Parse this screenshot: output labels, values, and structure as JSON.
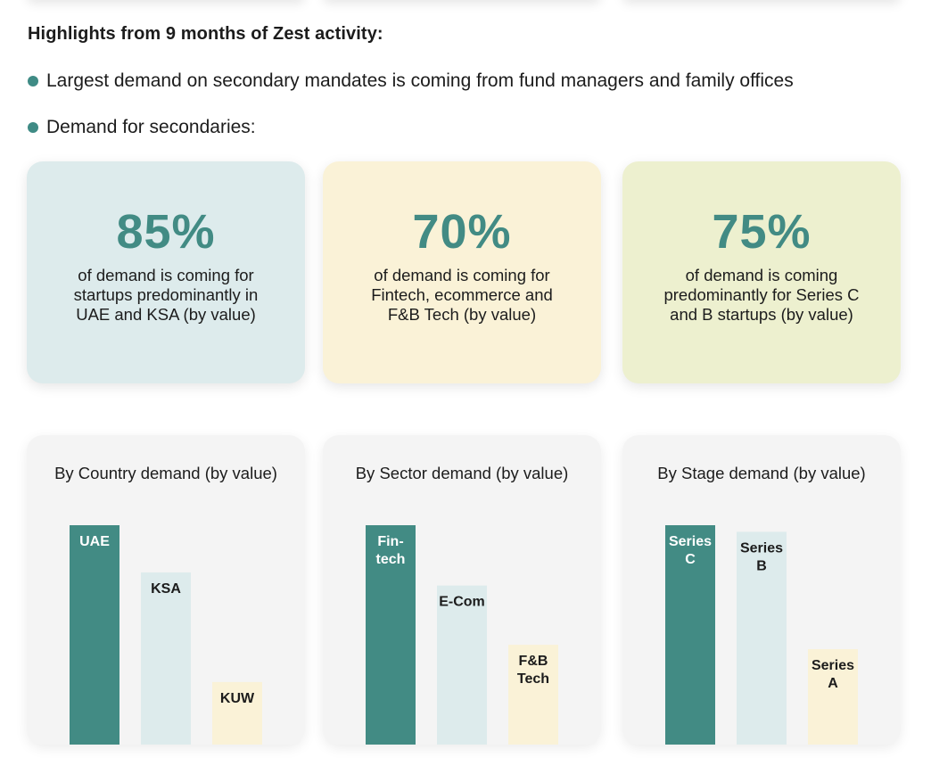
{
  "heading": "Highlights from 9 months of Zest activity:",
  "bullets": [
    "Largest demand on secondary mandates is coming from fund managers and family offices",
    "Demand for secondaries:"
  ],
  "stats": [
    {
      "value": "85%",
      "lines": [
        "of demand is coming for",
        "startups predominantly in",
        "UAE and KSA (by value)"
      ],
      "bg": "#ddebec"
    },
    {
      "value": "70%",
      "lines": [
        "of demand is coming for",
        "Fintech, ecommerce and",
        "F&B Tech (by value)"
      ],
      "bg": "#faf2d7"
    },
    {
      "value": "75%",
      "lines": [
        "of demand is coming",
        "predominantly for Series C",
        "and B startups (by value)"
      ],
      "bg": "#edf0cf"
    }
  ],
  "colors": {
    "accent": "#428b84",
    "bar_dark": "#428b84",
    "bar_light": "#ddebec",
    "bar_cream": "#faf2d7",
    "text": "#1c1c1c"
  },
  "chart_data": [
    {
      "type": "bar",
      "title": "By Country demand (by value)",
      "categories": [
        [
          "UAE"
        ],
        [
          "KSA"
        ],
        [
          "KUW"
        ]
      ],
      "values": [
        100,
        78.5,
        28.5
      ],
      "ylim": [
        0,
        100
      ],
      "bar_colors": [
        "#428b84",
        "#ddebec",
        "#faf2d7"
      ],
      "label_colors": [
        "#ffffff",
        "#1c1c1c",
        "#1c1c1c"
      ],
      "grid": false,
      "legend": "none"
    },
    {
      "type": "bar",
      "title": "By Sector demand (by value)",
      "categories": [
        [
          "Fin-",
          "tech"
        ],
        [
          "E-Com"
        ],
        [
          "F&B",
          "Tech"
        ]
      ],
      "values": [
        100,
        72.5,
        45.5
      ],
      "ylim": [
        0,
        100
      ],
      "bar_colors": [
        "#428b84",
        "#ddebec",
        "#faf2d7"
      ],
      "label_colors": [
        "#ffffff",
        "#1c1c1c",
        "#1c1c1c"
      ],
      "grid": false,
      "legend": "none"
    },
    {
      "type": "bar",
      "title": "By Stage demand (by value)",
      "categories": [
        [
          "Series",
          "C"
        ],
        [
          "Series",
          "B"
        ],
        [
          "Series",
          "A"
        ]
      ],
      "values": [
        100,
        97,
        43.5
      ],
      "ylim": [
        0,
        100
      ],
      "bar_colors": [
        "#428b84",
        "#ddebec",
        "#faf2d7"
      ],
      "label_colors": [
        "#ffffff",
        "#1c1c1c",
        "#1c1c1c"
      ],
      "grid": false,
      "legend": "none"
    }
  ]
}
